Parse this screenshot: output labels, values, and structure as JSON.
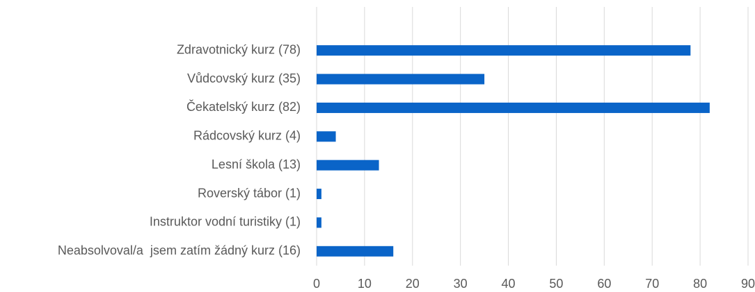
{
  "chart_data": {
    "type": "barh",
    "categories": [
      "Zdravotnický kurz (78)",
      "Vůdcovský kurz (35)",
      "Čekatelský kurz (82)",
      "Rádcovský kurz (4)",
      "Lesní škola (13)",
      "Roverský tábor (1)",
      "Instruktor vodní turistiky (1)",
      "Neabsolvoval/a  jsem zatím žádný kurz (16)"
    ],
    "values": [
      78,
      35,
      82,
      4,
      13,
      1,
      1,
      16
    ],
    "color": "#0a64c8",
    "xlim": [
      0,
      90
    ],
    "xticks": [
      0,
      10,
      20,
      30,
      40,
      50,
      60,
      70,
      80,
      90
    ],
    "grid": true
  }
}
